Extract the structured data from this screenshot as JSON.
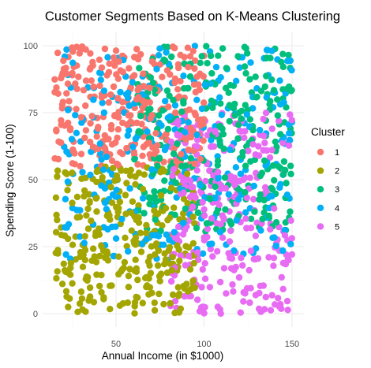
{
  "chart_data": {
    "type": "scatter",
    "title": "Customer Segments Based on K-Means Clustering",
    "xlabel": "Annual Income (in $1000)",
    "ylabel": "Spending Score (1-100)",
    "xlim": [
      15,
      150
    ],
    "ylim": [
      0,
      100
    ],
    "x_ticks": [
      50,
      100,
      150
    ],
    "y_ticks": [
      0,
      25,
      50,
      75,
      100
    ],
    "grid": true,
    "legend": {
      "title": "Cluster",
      "placement": "right"
    },
    "series": [
      {
        "name": "1",
        "color": "#F8766D",
        "x_range": [
          15,
          100
        ],
        "y_range": [
          55,
          100
        ],
        "points": 300
      },
      {
        "name": "2",
        "color": "#A3A500",
        "x_range": [
          15,
          95
        ],
        "y_range": [
          0,
          55
        ],
        "points": 300
      },
      {
        "name": "3",
        "color": "#00BF7D",
        "x_range": [
          60,
          150
        ],
        "y_range": [
          30,
          100
        ],
        "points": 300
      },
      {
        "name": "4",
        "color": "#00B0F6",
        "x_range": [
          20,
          150
        ],
        "y_range": [
          20,
          100
        ],
        "points": 300
      },
      {
        "name": "5",
        "color": "#E76BF3",
        "x_range": [
          80,
          150
        ],
        "y_range": [
          0,
          75
        ],
        "points": 300
      }
    ]
  }
}
